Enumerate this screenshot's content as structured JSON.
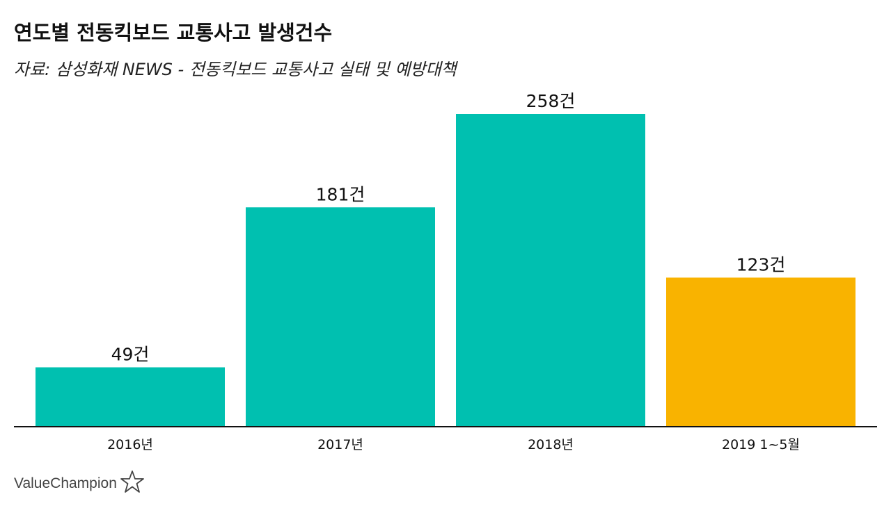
{
  "header": {
    "title": "연도별 전동킥보드 교통사고 발생건수",
    "subtitle": "자료: 삼성화재 NEWS - 전동킥보드 교통사고 실태 및 예방대책"
  },
  "chart_data": {
    "type": "bar",
    "categories": [
      "2016년",
      "2017년",
      "2018년",
      "2019 1~5월"
    ],
    "values": [
      49,
      181,
      258,
      123
    ],
    "data_labels": [
      "49건",
      "181건",
      "258건",
      "123건"
    ],
    "ylim": [
      0,
      258
    ],
    "grid": false,
    "colors": [
      "#00c0b0",
      "#00c0b0",
      "#00c0b0",
      "#f9b300"
    ]
  },
  "brand": {
    "name": "ValueChampion",
    "icon": "star-outline-icon"
  }
}
